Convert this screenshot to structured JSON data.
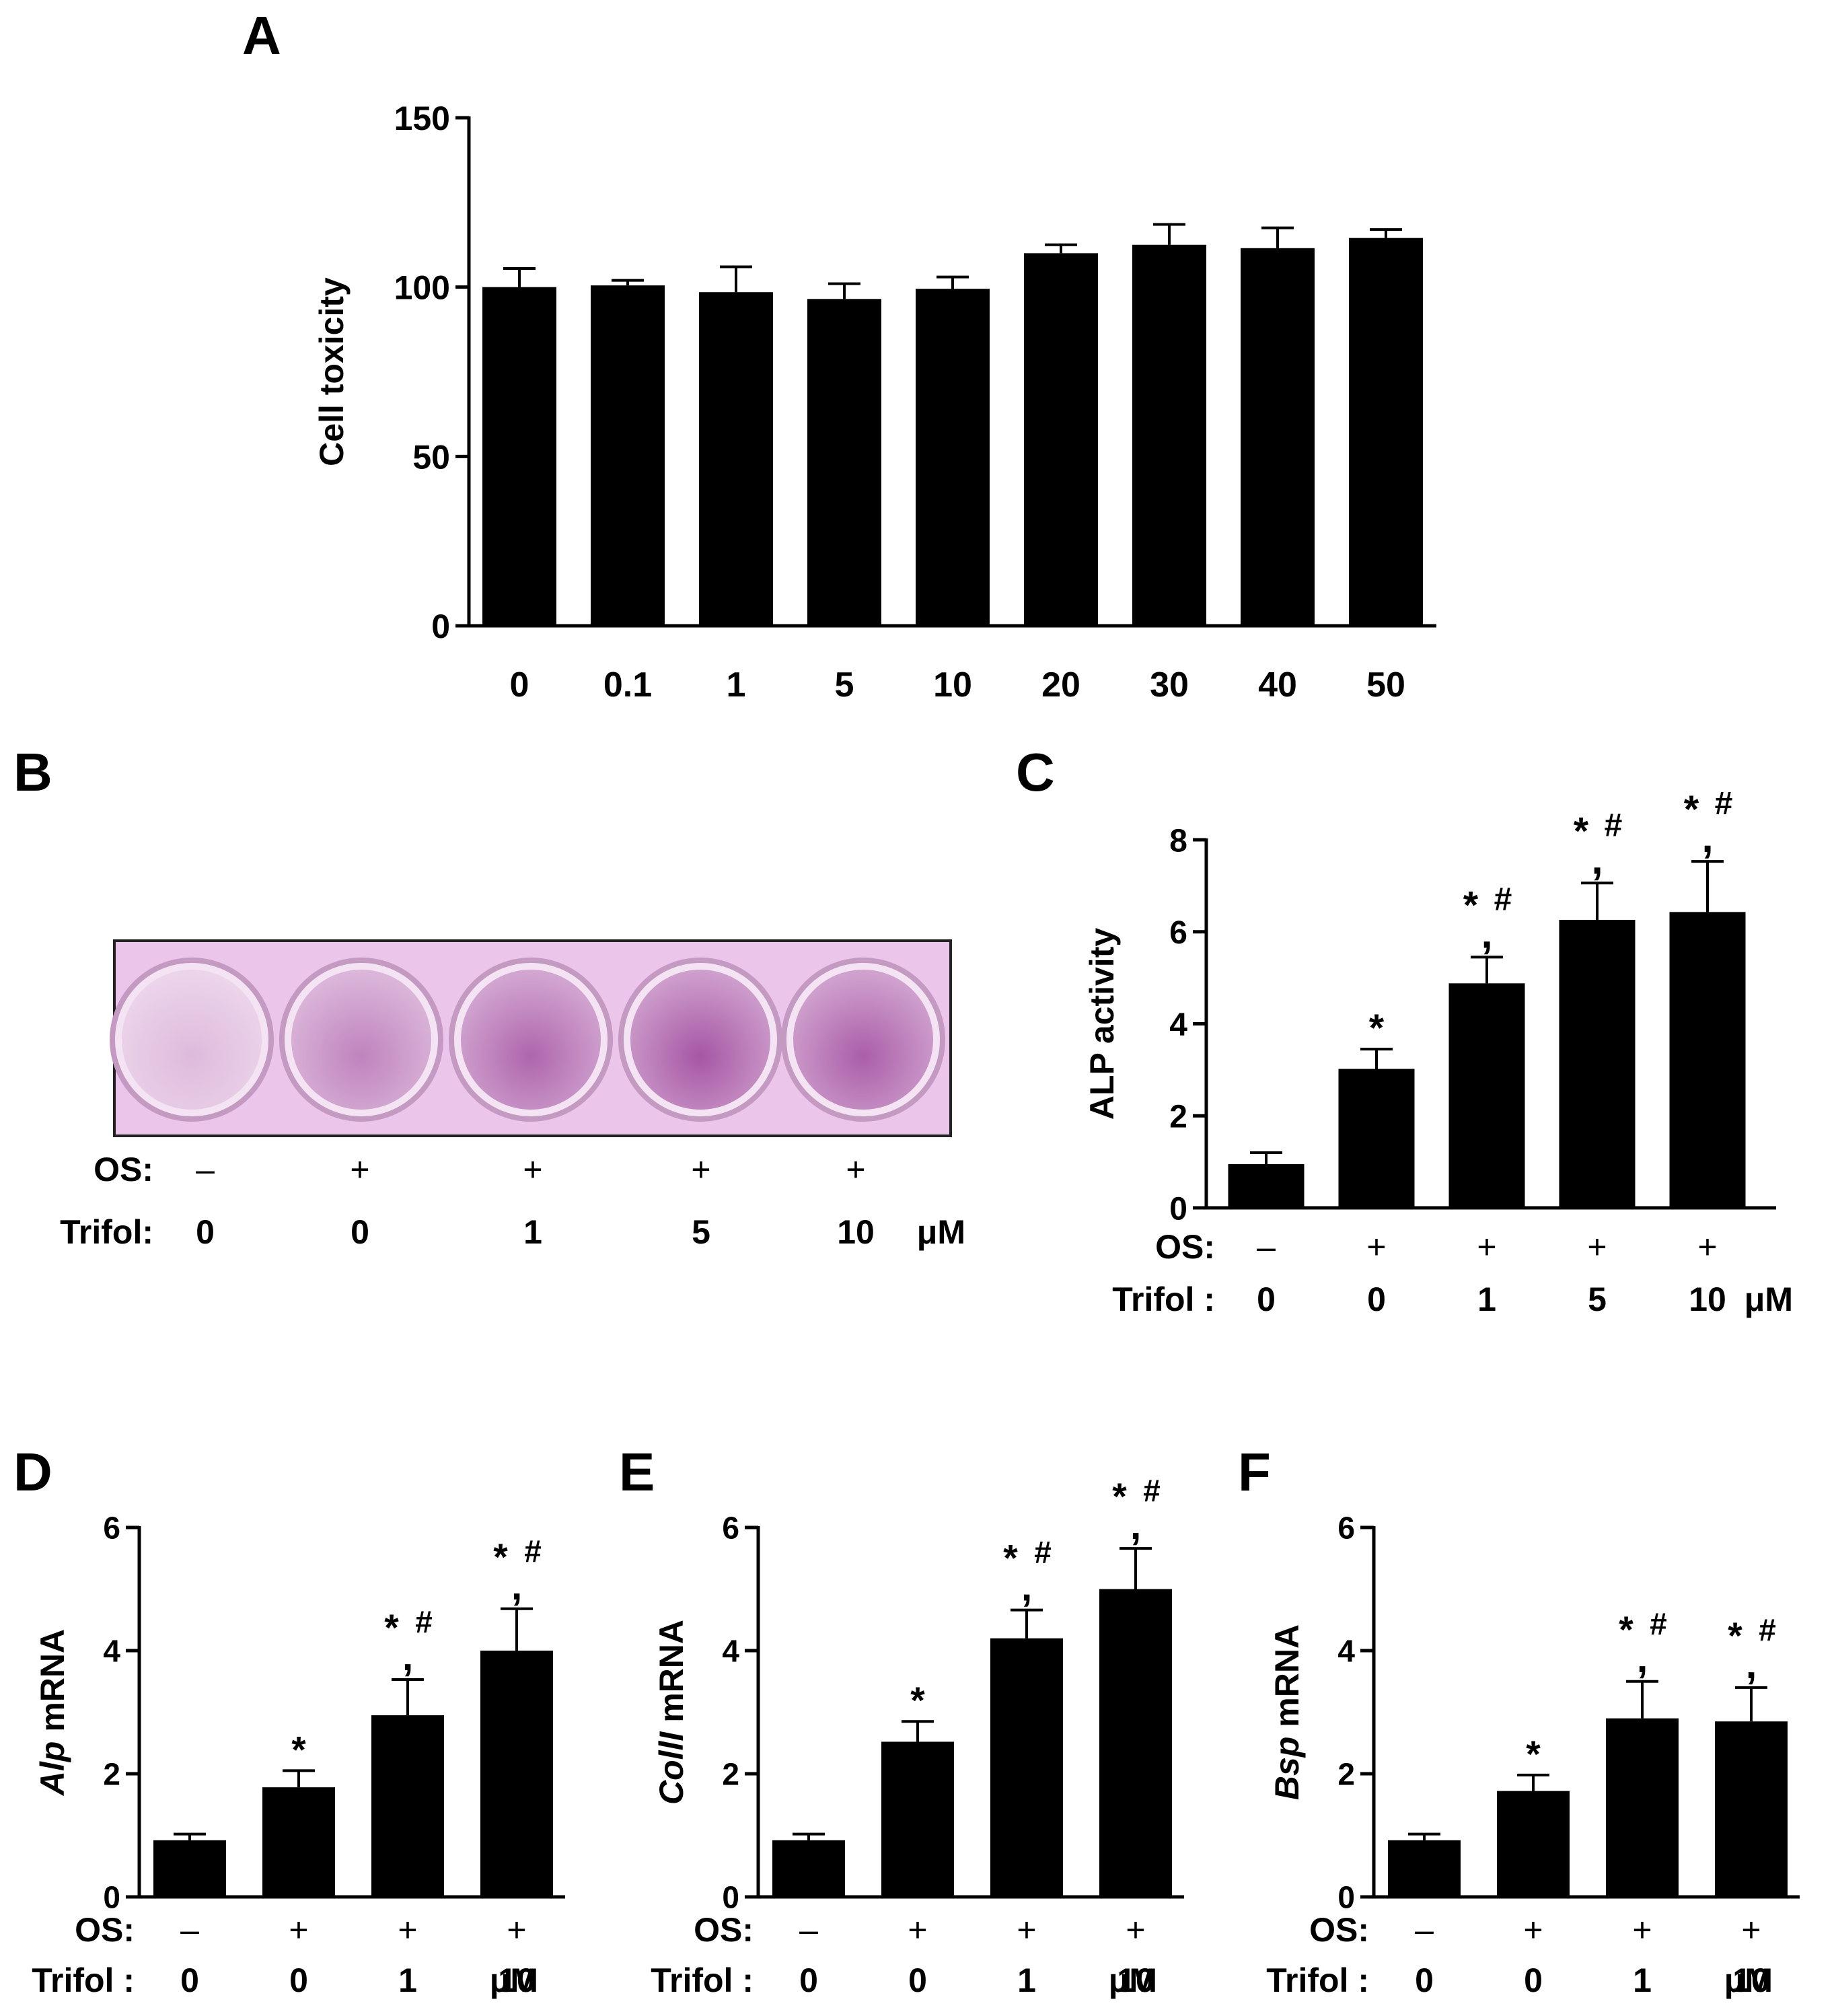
{
  "colors": {
    "bar": "#000000",
    "axis": "#000000",
    "text": "#000000",
    "stain": "#a24fa0",
    "plate": "#ecc6ea"
  },
  "panel_b": {
    "letter": "B",
    "os_label": "OS:",
    "trifol_label": "Trifol:",
    "os": [
      "–",
      "+",
      "+",
      "+",
      "+"
    ],
    "trifol": [
      "0",
      "0",
      "1",
      "5",
      "10"
    ],
    "unit": "μM",
    "stain_intensity": [
      0.18,
      0.55,
      0.75,
      0.85,
      0.8
    ]
  },
  "chart_data": [
    {
      "id": "A",
      "letter": "A",
      "type": "bar",
      "title": "",
      "xlabel": "",
      "ylabel": "Cell toxicity",
      "ylabel_parts": [
        {
          "text": "Cell toxicity",
          "italic": false
        }
      ],
      "ylim": [
        0,
        150
      ],
      "yticks": [
        "0",
        "50",
        "100",
        "150"
      ],
      "categories": [
        "0",
        "0.1",
        "1",
        "5",
        "10",
        "20",
        "30",
        "40",
        "50"
      ],
      "values": [
        100,
        100.5,
        98.5,
        96.5,
        99.5,
        110,
        112.5,
        111.5,
        114.5
      ],
      "errors": [
        5.5,
        1.5,
        7.5,
        4.5,
        3.5,
        2.5,
        6,
        6,
        2.5
      ],
      "annotations": [
        "",
        "",
        "",
        "",
        "",
        "",
        "",
        "",
        ""
      ],
      "grid": false,
      "legend": "none"
    },
    {
      "id": "C",
      "letter": "C",
      "type": "bar",
      "title": "",
      "xlabel": "",
      "ylabel": "ALP activity",
      "ylabel_parts": [
        {
          "text": "ALP activity",
          "italic": false
        }
      ],
      "ylim": [
        0,
        8
      ],
      "yticks": [
        "0",
        "2",
        "4",
        "6",
        "8"
      ],
      "categories": [
        "1",
        "2",
        "3",
        "4",
        "5"
      ],
      "values": [
        0.95,
        3.02,
        4.88,
        6.26,
        6.43
      ],
      "errors": [
        0.25,
        0.43,
        0.57,
        0.8,
        1.1
      ],
      "annotations": [
        "",
        "*",
        "*,#",
        "*,#",
        "*,#"
      ],
      "os_label": "OS:",
      "trifol_label": "Trifol :",
      "os": [
        "–",
        "+",
        "+",
        "+",
        "+"
      ],
      "trifol": [
        "0",
        "0",
        "1",
        "5",
        "10"
      ],
      "unit": "μM",
      "grid": false,
      "legend": "none"
    },
    {
      "id": "D",
      "letter": "D",
      "type": "bar",
      "title": "",
      "xlabel": "",
      "ylabel": "Alp mRNA",
      "ylabel_parts": [
        {
          "text": "Alp",
          "italic": true
        },
        {
          "text": " mRNA",
          "italic": false
        }
      ],
      "ylim": [
        0,
        6
      ],
      "yticks": [
        "0",
        "2",
        "4",
        "6"
      ],
      "categories": [
        "1",
        "2",
        "3",
        "4"
      ],
      "values": [
        0.92,
        1.78,
        2.95,
        4.0
      ],
      "errors": [
        0.1,
        0.27,
        0.58,
        0.68
      ],
      "annotations": [
        "",
        "*",
        "*,#",
        "*,#"
      ],
      "os_label": "OS:",
      "trifol_label": "Trifol :",
      "os": [
        "–",
        "+",
        "+",
        "+"
      ],
      "trifol": [
        "0",
        "0",
        "1",
        "10"
      ],
      "unit": "μM",
      "grid": false,
      "legend": "none"
    },
    {
      "id": "E",
      "letter": "E",
      "type": "bar",
      "title": "",
      "xlabel": "",
      "ylabel": "CollI mRNA",
      "ylabel_parts": [
        {
          "text": "CollI",
          "italic": true
        },
        {
          "text": " mRNA",
          "italic": false
        }
      ],
      "ylim": [
        0,
        6
      ],
      "yticks": [
        "0",
        "2",
        "4",
        "6"
      ],
      "categories": [
        "1",
        "2",
        "3",
        "4"
      ],
      "values": [
        0.92,
        2.52,
        4.2,
        5.0
      ],
      "errors": [
        0.1,
        0.33,
        0.46,
        0.66
      ],
      "annotations": [
        "",
        "*",
        "*,#",
        "*,#"
      ],
      "os_label": "OS:",
      "trifol_label": "Trifol :",
      "os": [
        "–",
        "+",
        "+",
        "+"
      ],
      "trifol": [
        "0",
        "0",
        "1",
        "10"
      ],
      "unit": "μM",
      "grid": false,
      "legend": "none"
    },
    {
      "id": "F",
      "letter": "F",
      "type": "bar",
      "title": "",
      "xlabel": "",
      "ylabel": "Bsp mRNA",
      "ylabel_parts": [
        {
          "text": "Bsp",
          "italic": true
        },
        {
          "text": " mRNA",
          "italic": false
        }
      ],
      "ylim": [
        0,
        6
      ],
      "yticks": [
        "0",
        "2",
        "4",
        "6"
      ],
      "categories": [
        "1",
        "2",
        "3",
        "4"
      ],
      "values": [
        0.92,
        1.72,
        2.9,
        2.85
      ],
      "errors": [
        0.1,
        0.26,
        0.6,
        0.55
      ],
      "annotations": [
        "",
        "*",
        "*,#",
        "*,#"
      ],
      "os_label": "OS:",
      "trifol_label": "Trifol :",
      "os": [
        "–",
        "+",
        "+",
        "+"
      ],
      "trifol": [
        "0",
        "0",
        "1",
        "10"
      ],
      "unit": "μM",
      "grid": false,
      "legend": "none"
    }
  ]
}
